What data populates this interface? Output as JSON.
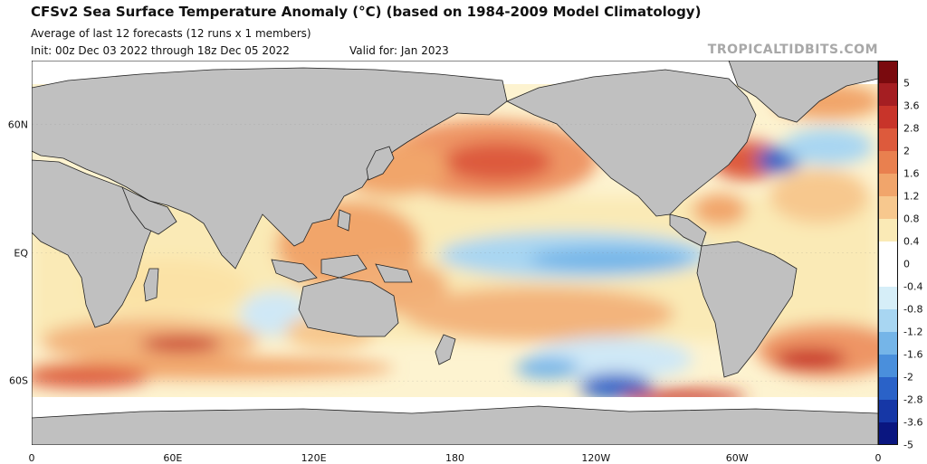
{
  "header": {
    "title": "CFSv2 Sea Surface Temperature Anomaly (°C) (based on 1984-2009 Model Climatology)",
    "subtitle": "Average of last 12 forecasts (12 runs x 1 members)",
    "init": "Init: 00z Dec 03 2022 through 18z Dec 05 2022",
    "valid": "Valid for: Jan 2023",
    "brand": "TROPICALTIDBITS.COM"
  },
  "map": {
    "projection": "equirectangular",
    "lon_range": [
      0,
      360
    ],
    "lat_range": [
      -90,
      90
    ],
    "land_color": "#c0c0c0",
    "ice_color": "#ffffff",
    "y_ticks": [
      {
        "lat": 60,
        "label": "60N"
      },
      {
        "lat": 0,
        "label": "EQ"
      },
      {
        "lat": -60,
        "label": "60S"
      }
    ],
    "x_ticks": [
      {
        "lon": 0,
        "label": "0"
      },
      {
        "lon": 60,
        "label": "60E"
      },
      {
        "lon": 120,
        "label": "120E"
      },
      {
        "lon": 180,
        "label": "180"
      },
      {
        "lon": 240,
        "label": "120W"
      },
      {
        "lon": 300,
        "label": "60W"
      },
      {
        "lon": 360,
        "label": "0"
      }
    ]
  },
  "colorbar": {
    "labels": [
      "5",
      "3.6",
      "2.8",
      "2",
      "1.6",
      "1.2",
      "0.8",
      "0.4",
      "0",
      "-0.4",
      "-0.8",
      "-1.2",
      "-1.6",
      "-2",
      "-2.8",
      "-3.6",
      "-5"
    ],
    "colors": [
      "#7a0a0e",
      "#a51e22",
      "#c8342a",
      "#dd5a3c",
      "#e9804f",
      "#f1a56b",
      "#f7c88e",
      "#faeab6",
      "#ffffff",
      "#ffffff",
      "#d6eef8",
      "#a8d6f2",
      "#75b5e8",
      "#4a8fdc",
      "#2a62c8",
      "#1637a6",
      "#0a1680"
    ]
  },
  "anomaly_regions": [
    {
      "name": "NE Pacific warm blob",
      "lon": 195,
      "lat": 40,
      "value": 2.5
    },
    {
      "name": "Equatorial Pacific cool tongue",
      "lon": 225,
      "lat": -2,
      "value": -0.9
    },
    {
      "name": "Western Pacific warm pool",
      "lon": 140,
      "lat": 15,
      "value": 1.3
    },
    {
      "name": "NW Atlantic warm",
      "lon": 300,
      "lat": 40,
      "value": 2.8
    },
    {
      "name": "Labrador Sea cool",
      "lon": 310,
      "lat": 47,
      "value": -2.5
    },
    {
      "name": "South Atlantic warm",
      "lon": 330,
      "lat": -42,
      "value": 1.8
    },
    {
      "name": "SE Pacific cool",
      "lon": 245,
      "lat": -58,
      "value": -2.2
    },
    {
      "name": "Southern Indian warm",
      "lon": 60,
      "lat": -38,
      "value": 1.8
    }
  ]
}
